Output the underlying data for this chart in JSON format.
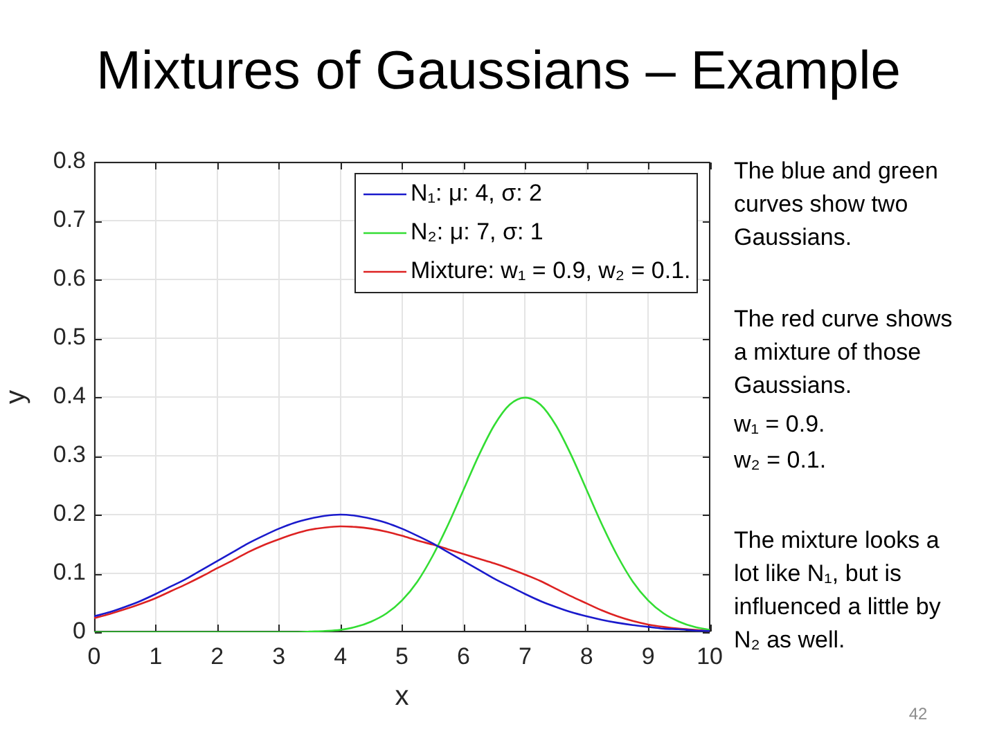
{
  "chart_data": {
    "type": "line",
    "title": "Mixtures of Gaussians – Example",
    "xlabel": "x",
    "ylabel": "y",
    "x": [
      0,
      0.25,
      0.5,
      0.75,
      1,
      1.25,
      1.5,
      1.75,
      2,
      2.25,
      2.5,
      2.75,
      3,
      3.25,
      3.5,
      3.75,
      4,
      4.25,
      4.5,
      4.75,
      5,
      5.25,
      5.5,
      5.75,
      6,
      6.25,
      6.5,
      6.75,
      7,
      7.25,
      7.5,
      7.75,
      8,
      8.25,
      8.5,
      8.75,
      9,
      9.25,
      9.5,
      9.75,
      10
    ],
    "series": [
      {
        "name": "N₁: μ: 4, σ: 2",
        "color": "#1a1acc",
        "values": [
          0.027,
          0.034,
          0.043,
          0.053,
          0.065,
          0.078,
          0.091,
          0.106,
          0.121,
          0.136,
          0.151,
          0.164,
          0.176,
          0.186,
          0.193,
          0.198,
          0.2,
          0.198,
          0.193,
          0.186,
          0.176,
          0.164,
          0.151,
          0.136,
          0.121,
          0.106,
          0.091,
          0.078,
          0.065,
          0.053,
          0.043,
          0.034,
          0.027,
          0.021,
          0.016,
          0.012,
          0.009,
          0.006,
          0.005,
          0.003,
          0.002
        ]
      },
      {
        "name": "N₂: μ: 7, σ: 1",
        "color": "#33dd33",
        "values": [
          0,
          0,
          0,
          0,
          0,
          0,
          0,
          0,
          0,
          0,
          0,
          0,
          0,
          0,
          0.001,
          0.002,
          0.004,
          0.009,
          0.018,
          0.032,
          0.054,
          0.086,
          0.13,
          0.183,
          0.242,
          0.301,
          0.352,
          0.387,
          0.399,
          0.387,
          0.352,
          0.301,
          0.242,
          0.183,
          0.13,
          0.086,
          0.054,
          0.032,
          0.018,
          0.009,
          0.004
        ]
      },
      {
        "name": "Mixture: w₁ = 0.9, w₂ = 0.1.",
        "color": "#dd2222",
        "values": [
          0.024,
          0.031,
          0.039,
          0.048,
          0.058,
          0.07,
          0.082,
          0.095,
          0.109,
          0.122,
          0.136,
          0.148,
          0.158,
          0.167,
          0.174,
          0.178,
          0.18,
          0.179,
          0.176,
          0.171,
          0.164,
          0.156,
          0.149,
          0.141,
          0.133,
          0.125,
          0.117,
          0.108,
          0.098,
          0.087,
          0.074,
          0.061,
          0.049,
          0.037,
          0.027,
          0.019,
          0.013,
          0.009,
          0.006,
          0.004,
          0.002
        ]
      }
    ],
    "xlim": [
      0,
      10
    ],
    "xticks": [
      0,
      1,
      2,
      3,
      4,
      5,
      6,
      7,
      8,
      9,
      10
    ],
    "ylim": [
      0,
      0.8
    ],
    "yticks": [
      0,
      0.1,
      0.2,
      0.3,
      0.4,
      0.5,
      0.6,
      0.7,
      0.8
    ],
    "grid": true,
    "legend": "top right",
    "annotations": [
      "The blue and green curves show two Gaussians.",
      "The red curve shows a mixture of those Gaussians.",
      "w₁ = 0.9.",
      "w₂ = 0.1.",
      "The mixture looks a lot like N₁, but is influenced a little by N₂ as well.",
      "42"
    ]
  }
}
